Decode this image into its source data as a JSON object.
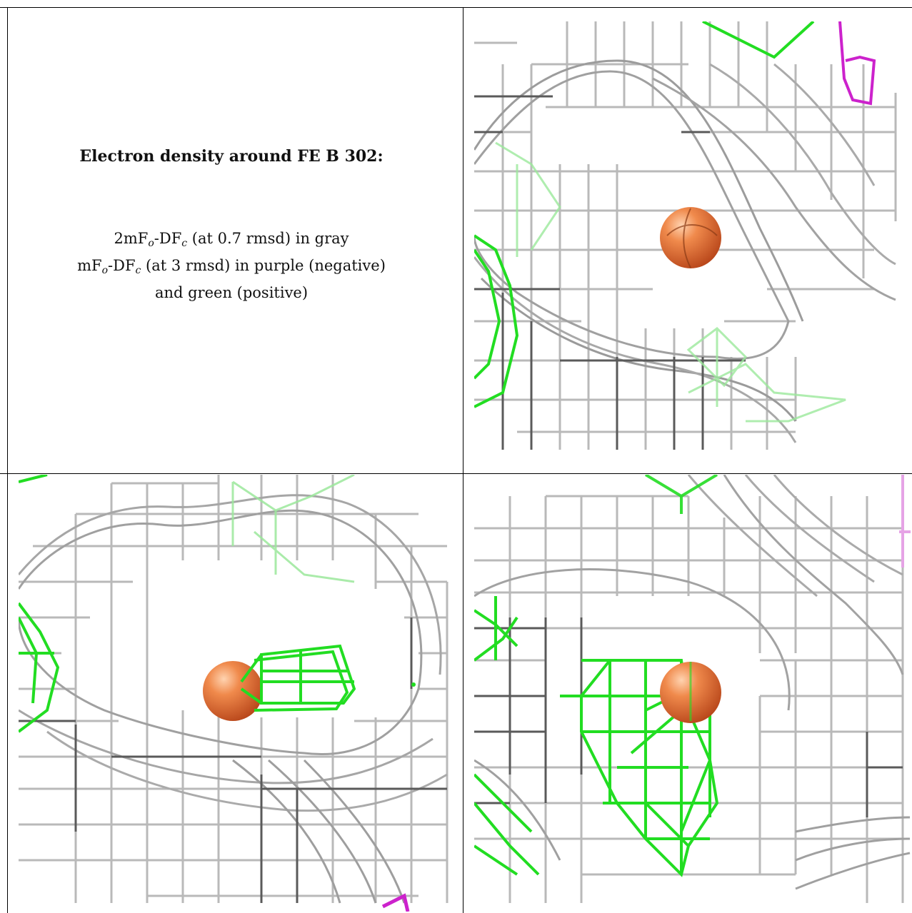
{
  "caption": {
    "title": "Electron density around FE B 302:",
    "line1_pre": "2mF",
    "line1_sub1": "o",
    "line1_mid": "-DF",
    "line1_sub2": "c",
    "line1_post": " (at 0.7 rmsd) in gray",
    "line2_pre": "mF",
    "line2_sub1": "o",
    "line2_mid": "-DF",
    "line2_sub2": "c",
    "line2_post": " (at 3 rmsd) in purple (negative)",
    "line3": "and green (positive)"
  },
  "colors": {
    "gray_mesh": "#8a8a8a",
    "dark_mesh": "#555555",
    "green_mesh": "#22dd22",
    "purple_mesh": "#cc22cc",
    "atom": "#e8733a"
  },
  "panels": [
    {
      "name": "view-top-right",
      "atom": "FE B 302"
    },
    {
      "name": "view-bottom-left",
      "atom": "FE B 302"
    },
    {
      "name": "view-bottom-right",
      "atom": "FE B 302"
    }
  ]
}
